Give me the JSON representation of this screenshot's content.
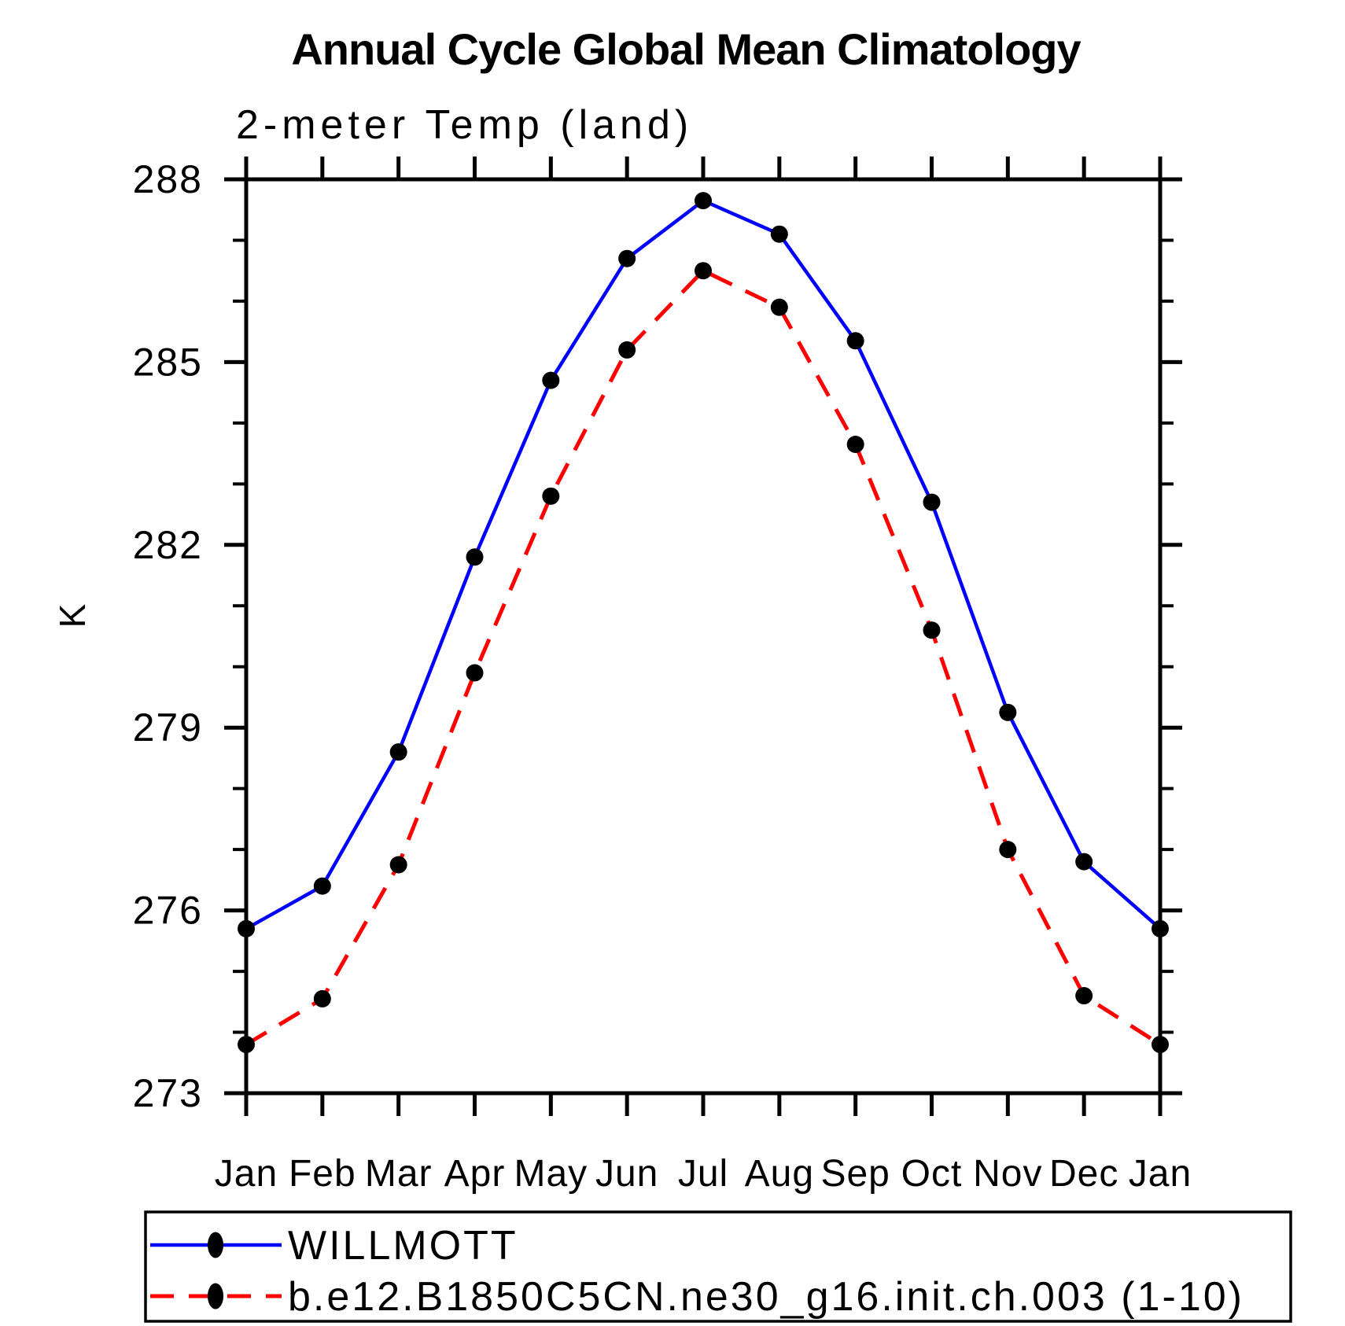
{
  "title": "Annual Cycle Global Mean Climatology",
  "subtitle": "2-meter Temp (land)",
  "y_axis": {
    "label": "K",
    "min": 273,
    "max": 288,
    "major_tick_step": 3,
    "minor_tick_step": 1,
    "major_tick_labels": [
      "273",
      "276",
      "279",
      "282",
      "285",
      "288"
    ]
  },
  "x_axis": {
    "tick_labels": [
      "Jan",
      "Feb",
      "Mar",
      "Apr",
      "May",
      "Jun",
      "Jul",
      "Aug",
      "Sep",
      "Oct",
      "Nov",
      "Dec",
      "Jan"
    ]
  },
  "colors": {
    "willmott_line": "#0000ff",
    "model_line": "#ff0000",
    "marker": "#000000",
    "axis": "#000000",
    "background": "#ffffff"
  },
  "legend": {
    "entries": [
      {
        "label": "WILLMOTT",
        "line_style": "solid",
        "color": "#0000ff",
        "marker": "filled-circle"
      },
      {
        "label": "b.e12.B1850C5CN.ne30_g16.init.ch.003 (1-10)",
        "line_style": "dashed",
        "color": "#ff0000",
        "marker": "filled-circle"
      }
    ],
    "position": "bottom"
  },
  "chart_data": {
    "type": "line",
    "title": "Annual Cycle Global Mean Climatology",
    "subtitle": "2-meter Temp (land)",
    "xlabel": "",
    "ylabel": "K",
    "ylim": [
      273,
      288
    ],
    "y_major_ticks": [
      273,
      276,
      279,
      282,
      285,
      288
    ],
    "y_minor_tick_interval": 1,
    "grid": false,
    "legend_position": "bottom",
    "x_categories": [
      "Jan",
      "Feb",
      "Mar",
      "Apr",
      "May",
      "Jun",
      "Jul",
      "Aug",
      "Sep",
      "Oct",
      "Nov",
      "Dec",
      "Jan"
    ],
    "series": [
      {
        "name": "WILLMOTT",
        "color": "#0000ff",
        "style": "solid",
        "marker": "filled-circle",
        "values": [
          275.7,
          276.4,
          278.6,
          281.8,
          284.7,
          286.7,
          287.65,
          287.1,
          285.35,
          282.7,
          279.25,
          276.8,
          275.7
        ]
      },
      {
        "name": "b.e12.B1850C5CN.ne30_g16.init.ch.003 (1-10)",
        "color": "#ff0000",
        "style": "dashed",
        "marker": "filled-circle",
        "values": [
          273.8,
          274.55,
          276.75,
          279.9,
          282.8,
          285.2,
          286.5,
          285.9,
          283.65,
          280.6,
          277.0,
          274.6,
          273.8
        ]
      }
    ]
  }
}
